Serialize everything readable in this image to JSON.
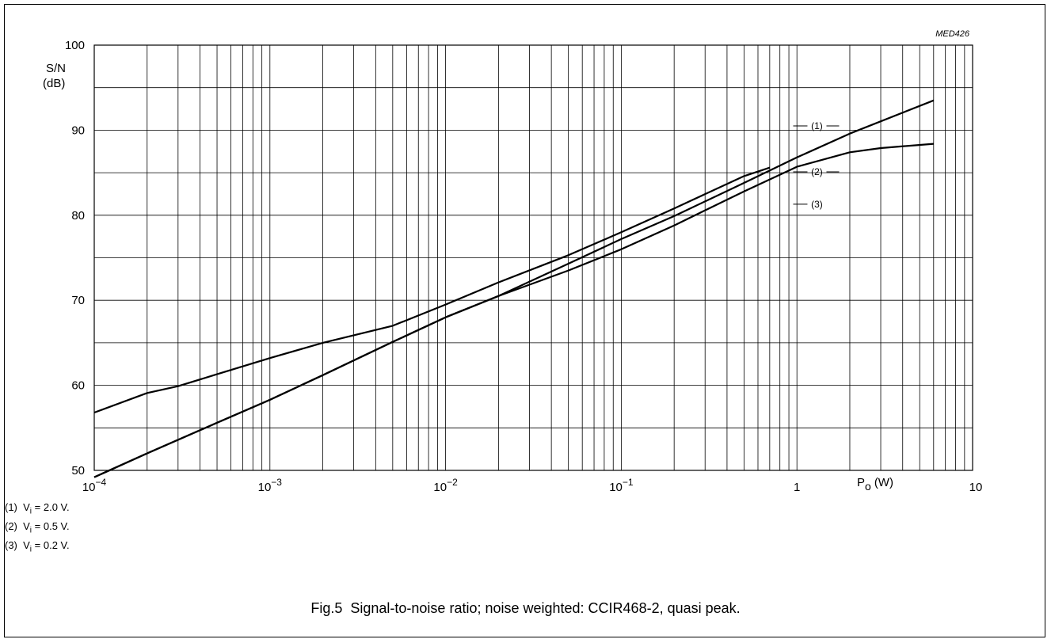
{
  "chart_data": {
    "type": "line",
    "figure_code": "MED426",
    "ylabel": "S/N",
    "ylabel_unit": "(dB)",
    "xlabel": "P",
    "xlabel_sub": "o",
    "xlabel_unit": "(W)",
    "xscale": "log",
    "xlim": [
      0.0001,
      10
    ],
    "ylim": [
      50,
      100
    ],
    "grid": true,
    "x_tick_labels": [
      {
        "value": 0.0001,
        "base": "10",
        "exp": "−4"
      },
      {
        "value": 0.001,
        "base": "10",
        "exp": "−3"
      },
      {
        "value": 0.01,
        "base": "10",
        "exp": "−2"
      },
      {
        "value": 0.1,
        "base": "10",
        "exp": "−1"
      },
      {
        "value": 1,
        "base": "1",
        "exp": ""
      },
      {
        "value": 10,
        "base": "10",
        "exp": ""
      }
    ],
    "y_ticks": [
      50,
      60,
      70,
      80,
      90,
      100
    ],
    "series": [
      {
        "name": "(1)",
        "points": [
          [
            0.0001,
            49.2
          ],
          [
            0.0002,
            52.0
          ],
          [
            0.0005,
            55.6
          ],
          [
            0.001,
            58.3
          ],
          [
            0.002,
            61.2
          ],
          [
            0.005,
            65.1
          ],
          [
            0.01,
            68.0
          ],
          [
            0.02,
            70.5
          ],
          [
            0.05,
            74.3
          ],
          [
            0.1,
            77.2
          ],
          [
            0.2,
            79.9
          ],
          [
            0.5,
            83.8
          ],
          [
            1,
            86.8
          ],
          [
            2,
            89.6
          ],
          [
            6,
            93.5
          ]
        ]
      },
      {
        "name": "(2)",
        "points": [
          [
            0.0001,
            49.2
          ],
          [
            0.0002,
            52.0
          ],
          [
            0.0005,
            55.6
          ],
          [
            0.001,
            58.3
          ],
          [
            0.002,
            61.2
          ],
          [
            0.005,
            65.1
          ],
          [
            0.01,
            68.0
          ],
          [
            0.02,
            70.5
          ],
          [
            0.05,
            73.5
          ],
          [
            0.1,
            76.0
          ],
          [
            0.2,
            78.8
          ],
          [
            0.5,
            82.8
          ],
          [
            1,
            85.7
          ],
          [
            2,
            87.4
          ],
          [
            3,
            87.9
          ],
          [
            6,
            88.4
          ]
        ]
      },
      {
        "name": "(3)",
        "points": [
          [
            0.0001,
            56.8
          ],
          [
            0.0002,
            59.1
          ],
          [
            0.0003,
            59.9
          ],
          [
            0.0005,
            61.3
          ],
          [
            0.001,
            63.2
          ],
          [
            0.002,
            65.0
          ],
          [
            0.005,
            67.0
          ],
          [
            0.01,
            69.5
          ],
          [
            0.02,
            72.1
          ],
          [
            0.05,
            75.3
          ],
          [
            0.1,
            78.0
          ],
          [
            0.2,
            80.8
          ],
          [
            0.5,
            84.6
          ],
          [
            0.7,
            85.6
          ]
        ]
      }
    ],
    "curve_labels": [
      {
        "text": "(1)",
        "x": 1.3,
        "y": 90.5
      },
      {
        "text": "(2)",
        "x": 1.3,
        "y": 85.1
      },
      {
        "text": "(3)",
        "x": 1.3,
        "y": 81.3
      }
    ]
  },
  "legend": [
    {
      "num": "(1)",
      "var": "V",
      "sub": "i",
      "text": " = 2.0 V."
    },
    {
      "num": "(2)",
      "var": "V",
      "sub": "i",
      "text": " = 0.5 V."
    },
    {
      "num": "(3)",
      "var": "V",
      "sub": "i",
      "text": " = 0.2 V."
    }
  ],
  "caption": {
    "fig": "Fig.5",
    "text": "Signal-to-noise ratio; noise weighted: CCIR468-2, quasi peak."
  }
}
